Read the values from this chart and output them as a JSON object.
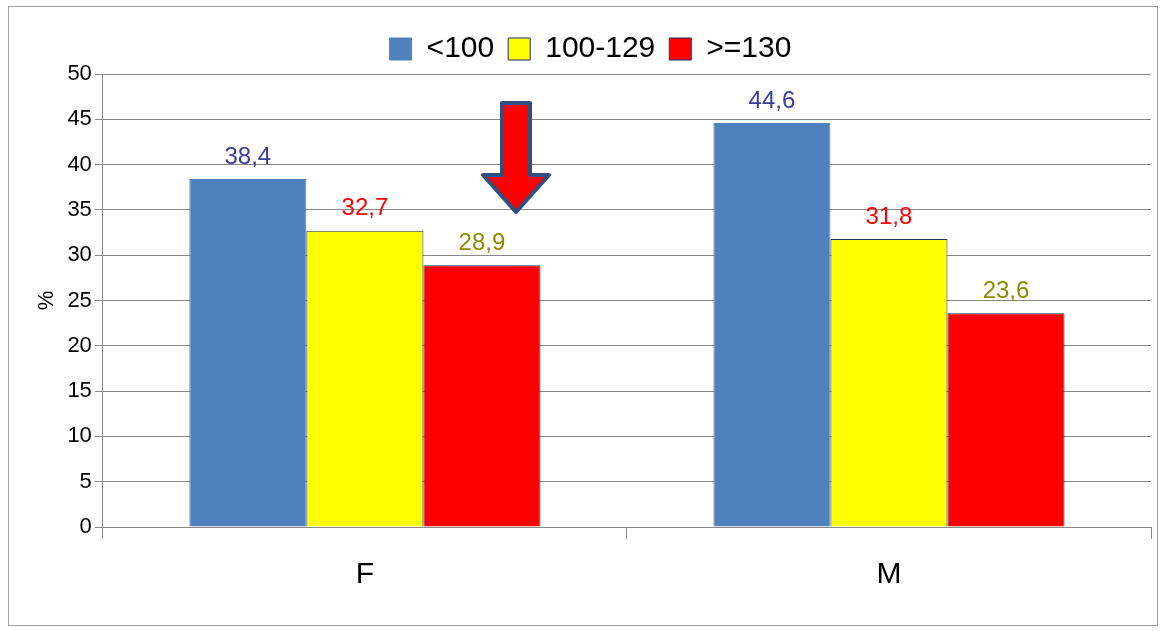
{
  "chart_data": {
    "type": "bar",
    "ylabel": "%",
    "categories": [
      "F",
      "M"
    ],
    "series": [
      {
        "name": "<100",
        "color": "#4f81bd",
        "values": [
          38.4,
          44.6
        ],
        "value_labels": [
          "38,4",
          "44,6"
        ]
      },
      {
        "name": "100-129",
        "color": "#ffff00",
        "values": [
          32.7,
          31.8
        ],
        "value_labels": [
          "32,7",
          "31,8"
        ]
      },
      {
        "name": ">=130",
        "color": "#ff0000",
        "values": [
          28.9,
          23.6
        ],
        "value_labels": [
          "28,9",
          "23,6"
        ]
      }
    ],
    "ylim": [
      0,
      50
    ],
    "yticks": [
      0,
      5,
      10,
      15,
      20,
      25,
      30,
      35,
      40,
      45,
      50
    ],
    "grid": "y",
    "legend": "top"
  }
}
